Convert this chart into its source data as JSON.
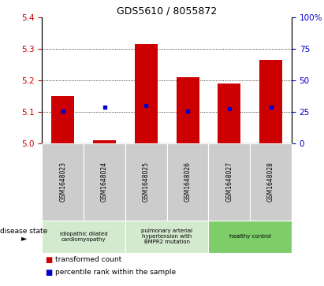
{
  "title": "GDS5610 / 8055872",
  "samples": [
    "GSM1648023",
    "GSM1648024",
    "GSM1648025",
    "GSM1648026",
    "GSM1648027",
    "GSM1648028"
  ],
  "red_values": [
    5.148,
    5.01,
    5.315,
    5.208,
    5.19,
    5.265
  ],
  "blue_values": [
    5.101,
    5.113,
    5.118,
    5.101,
    5.11,
    5.115
  ],
  "ylim_left": [
    5.0,
    5.4
  ],
  "yticks_left": [
    5.0,
    5.1,
    5.2,
    5.3,
    5.4
  ],
  "yticks_right": [
    0,
    25,
    50,
    75,
    100
  ],
  "yticklabels_right": [
    "0",
    "25",
    "50",
    "75",
    "100%"
  ],
  "bar_color": "#cc0000",
  "dot_color": "#0000cc",
  "bar_bottom": 5.0,
  "disease_groups": [
    {
      "label": "idiopathic dilated\ncardiomyopathy",
      "indices": [
        0,
        1
      ],
      "color": "#d4eacf"
    },
    {
      "label": "pulmonary arterial\nhypertension with\nBMPR2 mutation",
      "indices": [
        2,
        3
      ],
      "color": "#d4eacf"
    },
    {
      "label": "healthy control",
      "indices": [
        4,
        5
      ],
      "color": "#7dce68"
    }
  ],
  "legend_red_label": "transformed count",
  "legend_blue_label": "percentile rank within the sample",
  "left_axis_color": "#cc0000",
  "right_axis_color": "#0000cc",
  "sample_box_color": "#cccccc"
}
